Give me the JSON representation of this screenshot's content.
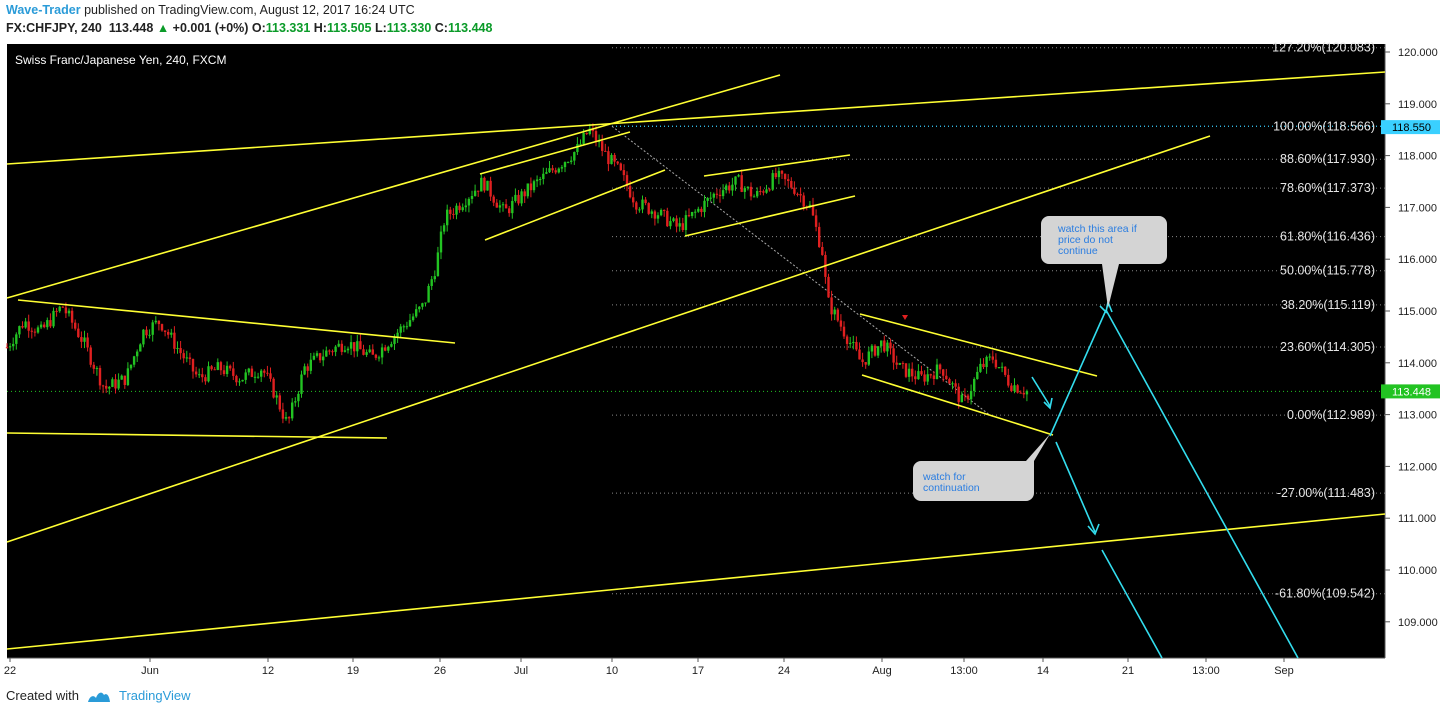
{
  "header": {
    "author": "Wave-Trader",
    "published": "published on TradingView.com, August 12, 2017 16:24 UTC",
    "symbol": "FX:CHFJPY, 240",
    "last": "113.448",
    "change": "+0.001 (+0%)",
    "o_label": "O:",
    "o": "113.331",
    "h_label": "H:",
    "h": "113.505",
    "l_label": "L:",
    "l": "113.330",
    "c_label": "C:",
    "c": "113.448"
  },
  "chart_title": "Swiss Franc/Japanese Yen, 240, FXCM",
  "footer": {
    "created_with": "Created with",
    "brand": "TradingView"
  },
  "colors": {
    "background": "#000000",
    "trendline": "#ffff33",
    "projection": "#33ddee",
    "fib": "#888888",
    "up": "#22c322",
    "down": "#e02020",
    "price_tag": "#3ad0ff"
  },
  "chart_data": {
    "type": "candlestick",
    "symbol": "FX:CHFJPY",
    "timeframe": "240",
    "y_axis": {
      "min": 108.2,
      "max": 120.2,
      "ticks": [
        "120.000",
        "119.000",
        "118.000",
        "117.000",
        "116.000",
        "115.000",
        "114.000",
        "113.000",
        "112.000",
        "111.000",
        "110.000",
        "109.000"
      ]
    },
    "x_axis_labels": [
      "22",
      "Jun",
      "12",
      "19",
      "26",
      "Jul",
      "10",
      "17",
      "24",
      "Aug",
      "13:00",
      "14",
      "21",
      "13:00",
      "Sep"
    ],
    "last_price": 113.448,
    "price_tags": [
      "118.550",
      "113.448"
    ],
    "fib_levels": [
      {
        "label": "127.20%(120.083)",
        "price": 120.083
      },
      {
        "label": "100.00%(118.566)",
        "price": 118.566
      },
      {
        "label": "88.60%(117.930)",
        "price": 117.93
      },
      {
        "label": "78.60%(117.373)",
        "price": 117.373
      },
      {
        "label": "61.80%(116.436)",
        "price": 116.436
      },
      {
        "label": "50.00%(115.778)",
        "price": 115.778
      },
      {
        "label": "38.20%(115.119)",
        "price": 115.119
      },
      {
        "label": "23.60%(114.305)",
        "price": 114.305
      },
      {
        "label": "0.00%(112.989)",
        "price": 112.989
      },
      {
        "label": "-27.00%(111.483)",
        "price": 111.483
      },
      {
        "label": "-61.80%(109.542)",
        "price": 109.542
      }
    ],
    "price_path": [
      [
        0,
        114.3
      ],
      [
        0.04,
        114.8
      ],
      [
        0.08,
        114.6
      ],
      [
        0.13,
        115.1
      ],
      [
        0.18,
        114.4
      ],
      [
        0.23,
        113.5
      ],
      [
        0.28,
        113.7
      ],
      [
        0.32,
        114.6
      ],
      [
        0.36,
        114.8
      ],
      [
        0.4,
        114.3
      ],
      [
        0.45,
        113.7
      ],
      [
        0.5,
        113.9
      ],
      [
        0.55,
        113.7
      ],
      [
        0.6,
        113.9
      ],
      [
        0.63,
        113.4
      ],
      [
        0.66,
        112.8
      ],
      [
        0.7,
        113.9
      ],
      [
        0.75,
        114.2
      ],
      [
        0.8,
        114.4
      ],
      [
        0.86,
        114.1
      ],
      [
        0.92,
        114.6
      ],
      [
        0.98,
        115.1
      ],
      [
        1.01,
        115.9
      ],
      [
        1.03,
        116.8
      ],
      [
        1.07,
        117.1
      ],
      [
        1.12,
        117.5
      ],
      [
        1.17,
        116.9
      ],
      [
        1.22,
        117.3
      ],
      [
        1.28,
        117.7
      ],
      [
        1.34,
        118.1
      ],
      [
        1.37,
        118.5
      ],
      [
        1.41,
        118.0
      ],
      [
        1.44,
        117.7
      ],
      [
        1.48,
        117.1
      ],
      [
        1.53,
        116.9
      ],
      [
        1.58,
        116.6
      ],
      [
        1.62,
        116.9
      ],
      [
        1.67,
        117.3
      ],
      [
        1.72,
        117.5
      ],
      [
        1.76,
        117.2
      ],
      [
        1.81,
        117.6
      ],
      [
        1.85,
        117.4
      ],
      [
        1.89,
        117.0
      ],
      [
        1.92,
        116.1
      ],
      [
        1.93,
        115.2
      ],
      [
        1.97,
        114.6
      ],
      [
        2.01,
        114.0
      ],
      [
        2.06,
        114.4
      ],
      [
        2.1,
        113.9
      ],
      [
        2.15,
        113.7
      ],
      [
        2.2,
        113.9
      ],
      [
        2.25,
        113.2
      ],
      [
        2.29,
        113.9
      ],
      [
        2.32,
        114.1
      ],
      [
        2.36,
        113.6
      ],
      [
        2.4,
        113.45
      ]
    ],
    "annotations": [
      {
        "text": [
          "watch this area if",
          "price do not",
          "continue"
        ]
      },
      {
        "text": [
          "watch for",
          "continuation"
        ]
      }
    ]
  }
}
